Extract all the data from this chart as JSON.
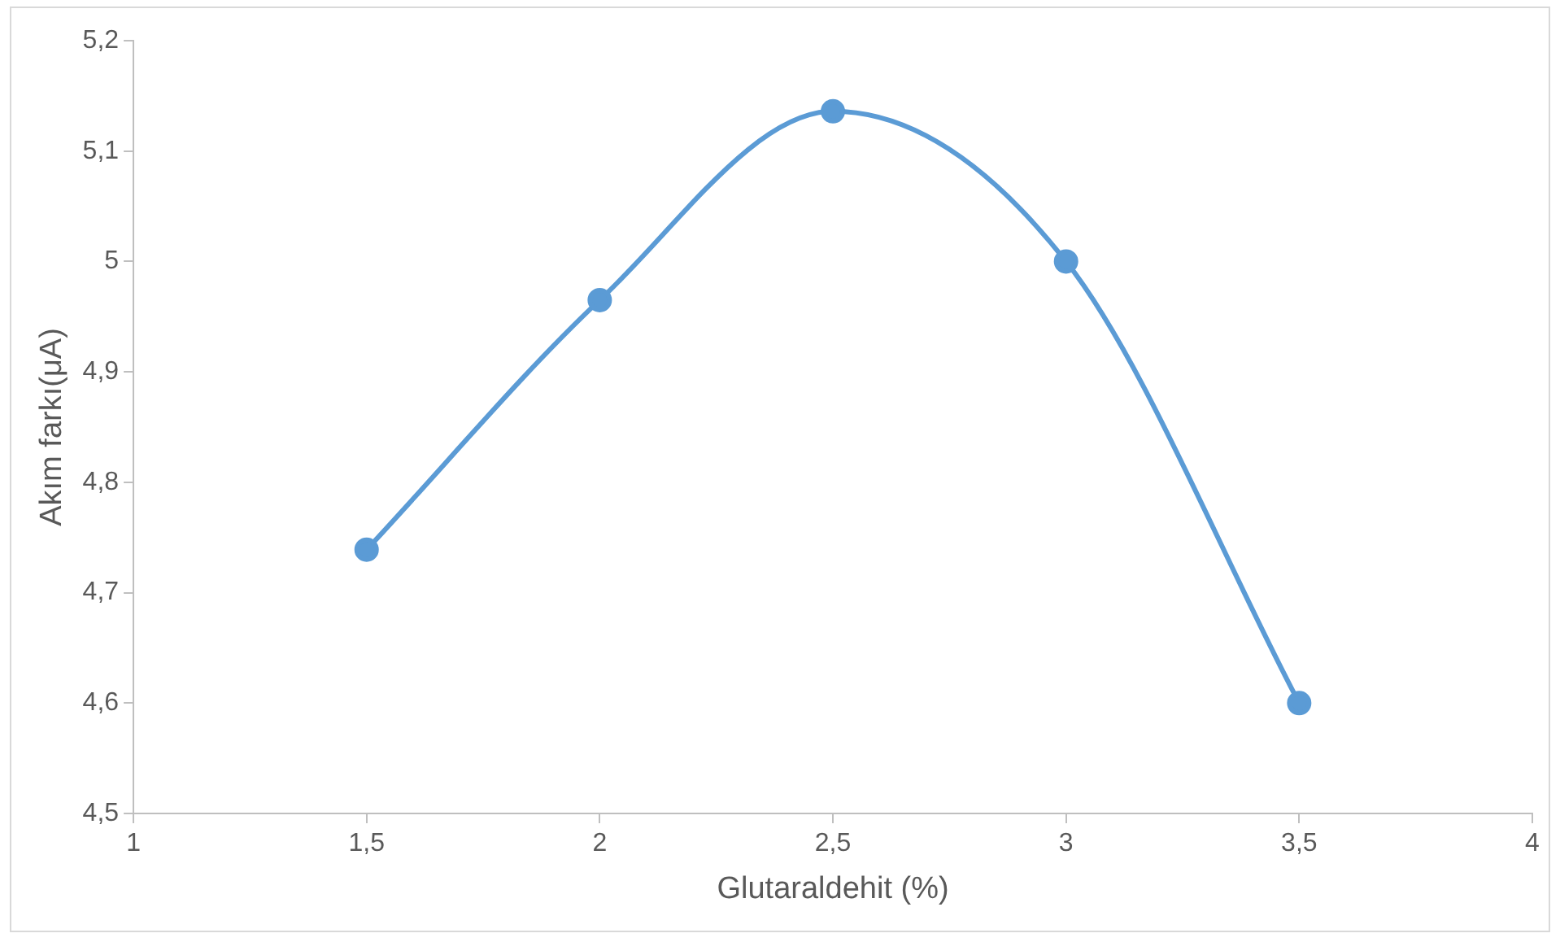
{
  "chart_data": {
    "type": "line",
    "xlabel": "Glutaraldehit (%)",
    "ylabel": "Akım farkı(μA)",
    "x": [
      1.5,
      2,
      2.5,
      3,
      3.5
    ],
    "series": [
      {
        "color": "#5b9bd5",
        "values": [
          4.739,
          4.965,
          5.136,
          5.0,
          4.6
        ]
      }
    ],
    "xlim": [
      1,
      4
    ],
    "xticks": [
      1,
      {
        "value": 1.5,
        "label": "1,5"
      },
      2,
      {
        "value": 2.5,
        "label": "2,5"
      },
      3,
      {
        "value": 3.5,
        "label": "3,5"
      },
      4
    ],
    "ylim": [
      4.5,
      5.2
    ],
    "yticks": [
      {
        "value": 4.5,
        "label": "4,5"
      },
      {
        "value": 4.6,
        "label": "4,6"
      },
      {
        "value": 4.7,
        "label": "4,7"
      },
      {
        "value": 4.8,
        "label": "4,8"
      },
      {
        "value": 4.9,
        "label": "4,9"
      },
      5,
      {
        "value": 5.1,
        "label": "5,1"
      },
      {
        "value": 5.2,
        "label": "5,2"
      }
    ],
    "grid": false,
    "legend": false,
    "marker": "circle",
    "line_style": "solid"
  }
}
